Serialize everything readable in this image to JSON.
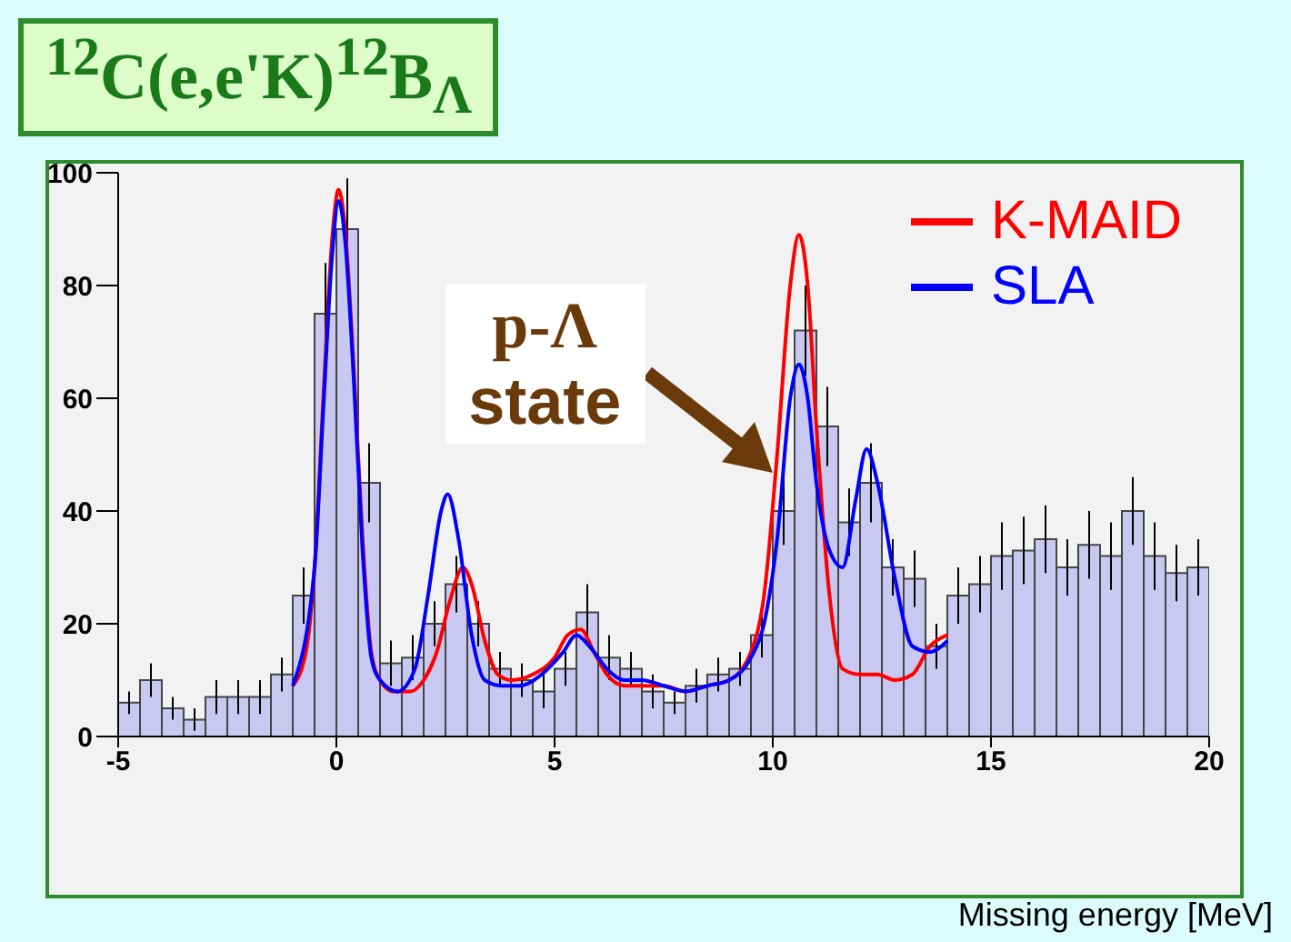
{
  "chart_data": {
    "type": "histogram",
    "title": "$^{12}$C(e,e'K)$^{12}$B$_{Λ}$",
    "xlabel": "Missing energy [MeV]",
    "bins": [
      -5,
      -4.5,
      -4,
      -3.5,
      -3,
      -2.5,
      -2,
      -1.5,
      -1,
      -0.5,
      0,
      0.5,
      1,
      1.5,
      2,
      2.5,
      3,
      3.5,
      4,
      4.5,
      5,
      5.5,
      6,
      6.5,
      7,
      7.5,
      8,
      8.5,
      9,
      9.5,
      10,
      10.5,
      11,
      11.5,
      12,
      12.5,
      13,
      13.5,
      14,
      14.5,
      15,
      15.5,
      16,
      16.5,
      17,
      17.5,
      18,
      18.5,
      19,
      19.5,
      20
    ],
    "values": [
      6,
      10,
      5,
      3,
      7,
      7,
      7,
      11,
      25,
      75,
      90,
      45,
      13,
      14,
      20,
      27,
      20,
      12,
      10,
      8,
      12,
      22,
      14,
      12,
      8,
      6,
      9,
      11,
      12,
      18,
      40,
      72,
      55,
      38,
      45,
      30,
      28,
      16,
      25,
      27,
      32,
      33,
      35,
      30,
      34,
      32,
      40,
      32,
      29,
      30
    ],
    "errors": [
      2,
      3,
      2,
      2,
      3,
      3,
      3,
      3,
      5,
      9,
      9,
      7,
      4,
      4,
      4,
      5,
      4,
      3,
      3,
      3,
      3,
      5,
      4,
      3,
      3,
      2,
      3,
      3,
      3,
      4,
      6,
      8,
      7,
      6,
      7,
      5,
      5,
      4,
      5,
      5,
      6,
      6,
      6,
      5,
      6,
      6,
      6,
      6,
      5,
      5
    ],
    "color": "#c8c8f0",
    "series": [
      {
        "name": "K-MAID",
        "type": "line",
        "color": "#ff0000",
        "x": [
          -1,
          -0.7,
          -0.5,
          -0.3,
          -0.1,
          0.05,
          0.2,
          0.4,
          0.6,
          0.8,
          1,
          1.3,
          1.7,
          2,
          2.3,
          2.6,
          2.9,
          3.1,
          3.4,
          3.7,
          4,
          4.5,
          5,
          5.3,
          5.6,
          5.9,
          6.2,
          6.6,
          7,
          7.5,
          8,
          8.5,
          9,
          9.5,
          9.8,
          10.1,
          10.4,
          10.6,
          10.8,
          11,
          11.3,
          11.6,
          12,
          12.4,
          12.8,
          13.2,
          13.6,
          14
        ],
        "values": [
          9,
          15,
          30,
          60,
          88,
          97,
          90,
          65,
          35,
          15,
          10,
          8,
          8,
          10,
          15,
          24,
          30,
          27,
          17,
          11,
          10,
          11,
          14,
          18,
          19,
          15,
          11,
          9,
          9,
          9,
          8,
          9,
          10,
          15,
          25,
          50,
          80,
          89,
          80,
          55,
          25,
          12,
          11,
          11,
          10,
          11,
          16,
          18
        ]
      },
      {
        "name": "SLA",
        "type": "line",
        "color": "#0000ff",
        "x": [
          -1,
          -0.5,
          -0.3,
          -0.1,
          0.05,
          0.2,
          0.4,
          0.6,
          0.8,
          1,
          1.4,
          1.8,
          2.1,
          2.4,
          2.55,
          2.8,
          3.1,
          3.4,
          3.8,
          4.2,
          4.7,
          5.2,
          5.5,
          5.8,
          6.2,
          6.6,
          7,
          7.5,
          8,
          8.5,
          9,
          9.5,
          9.8,
          10.1,
          10.4,
          10.6,
          10.8,
          11,
          11.3,
          11.6,
          11.9,
          12.15,
          12.4,
          12.8,
          13.2,
          13.6,
          14
        ],
        "values": [
          9,
          30,
          58,
          85,
          95,
          88,
          63,
          33,
          14,
          10,
          8,
          12,
          25,
          40,
          43,
          35,
          18,
          10,
          9,
          9,
          11,
          15,
          18,
          16,
          12,
          10,
          10,
          9,
          8,
          9,
          10,
          14,
          20,
          35,
          60,
          66,
          60,
          45,
          33,
          30,
          42,
          51,
          45,
          28,
          16,
          15,
          17
        ]
      }
    ],
    "annotations": [
      {
        "text": "p-Λ state",
        "x": 10.4,
        "y": 55
      }
    ],
    "xlim": [
      -5,
      20
    ],
    "xticks": [
      -5,
      0,
      5,
      10,
      15,
      20
    ],
    "ylim": [
      0,
      100
    ],
    "yticks": [
      0,
      20,
      40,
      60,
      80,
      100
    ],
    "legend": "top right",
    "marker": "none",
    "line_style": "solid",
    "grid": false
  }
}
